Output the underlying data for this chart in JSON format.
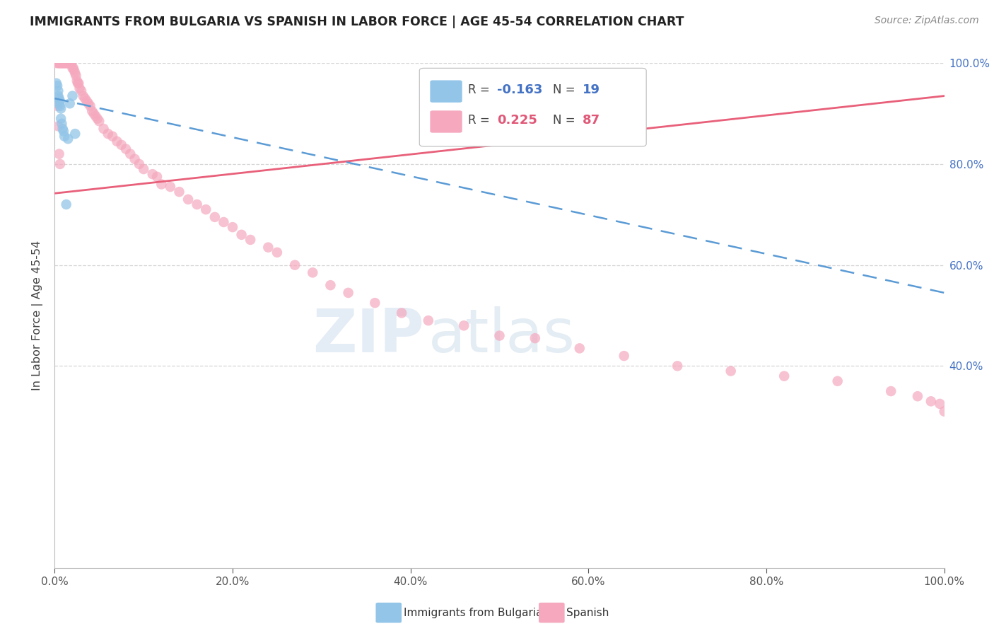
{
  "title": "IMMIGRANTS FROM BULGARIA VS SPANISH IN LABOR FORCE | AGE 45-54 CORRELATION CHART",
  "source": "Source: ZipAtlas.com",
  "ylabel": "In Labor Force | Age 45-54",
  "xlim": [
    0.0,
    1.0
  ],
  "ylim": [
    0.0,
    1.0
  ],
  "xticks": [
    0.0,
    0.2,
    0.4,
    0.6,
    0.8,
    1.0
  ],
  "yticks_right": [
    0.4,
    0.6,
    0.8,
    1.0
  ],
  "xticklabels": [
    "0.0%",
    "20.0%",
    "40.0%",
    "60.0%",
    "80.0%",
    "100.0%"
  ],
  "yticklabels_right": [
    "40.0%",
    "60.0%",
    "80.0%",
    "100.0%"
  ],
  "legend_r_blue": "-0.163",
  "legend_n_blue": "19",
  "legend_r_pink": "0.225",
  "legend_n_pink": "87",
  "blue_color": "#92C5E8",
  "pink_color": "#F5A8BE",
  "trendline_blue_color": "#5B9BD5",
  "trendline_pink_color": "#E8607A",
  "watermark_zip": "ZIP",
  "watermark_atlas": "atlas",
  "blue_trendline_x": [
    0.0,
    1.0
  ],
  "blue_trendline_y": [
    0.93,
    0.545
  ],
  "pink_trendline_x": [
    0.0,
    1.0
  ],
  "pink_trendline_y": [
    0.742,
    0.935
  ],
  "bulgaria_x": [
    0.002,
    0.003,
    0.004,
    0.004,
    0.005,
    0.005,
    0.006,
    0.006,
    0.007,
    0.007,
    0.008,
    0.009,
    0.01,
    0.011,
    0.013,
    0.015,
    0.017,
    0.02,
    0.023
  ],
  "bulgaria_y": [
    0.96,
    0.955,
    0.945,
    0.935,
    0.93,
    0.92,
    0.925,
    0.915,
    0.91,
    0.89,
    0.88,
    0.87,
    0.865,
    0.855,
    0.72,
    0.85,
    0.92,
    0.935,
    0.86
  ],
  "spanish_x": [
    0.002,
    0.004,
    0.005,
    0.006,
    0.007,
    0.008,
    0.009,
    0.01,
    0.011,
    0.012,
    0.013,
    0.014,
    0.015,
    0.016,
    0.017,
    0.018,
    0.019,
    0.02,
    0.021,
    0.022,
    0.023,
    0.024,
    0.025,
    0.026,
    0.027,
    0.028,
    0.03,
    0.032,
    0.034,
    0.036,
    0.038,
    0.04,
    0.042,
    0.044,
    0.046,
    0.048,
    0.05,
    0.055,
    0.06,
    0.065,
    0.07,
    0.075,
    0.08,
    0.085,
    0.09,
    0.095,
    0.1,
    0.11,
    0.115,
    0.12,
    0.13,
    0.14,
    0.15,
    0.16,
    0.17,
    0.18,
    0.19,
    0.2,
    0.21,
    0.22,
    0.24,
    0.25,
    0.27,
    0.29,
    0.31,
    0.33,
    0.36,
    0.39,
    0.42,
    0.46,
    0.5,
    0.54,
    0.59,
    0.64,
    0.7,
    0.76,
    0.82,
    0.88,
    0.94,
    0.97,
    0.985,
    0.995,
    1.0,
    0.003,
    0.004,
    0.005,
    0.006
  ],
  "spanish_y": [
    1.0,
    1.0,
    1.0,
    1.0,
    1.0,
    1.0,
    1.0,
    1.0,
    1.0,
    1.0,
    1.0,
    1.0,
    1.0,
    1.0,
    1.0,
    1.0,
    1.0,
    0.99,
    0.99,
    0.985,
    0.98,
    0.975,
    0.965,
    0.96,
    0.96,
    0.95,
    0.945,
    0.935,
    0.93,
    0.925,
    0.92,
    0.915,
    0.905,
    0.9,
    0.895,
    0.89,
    0.885,
    0.87,
    0.86,
    0.855,
    0.845,
    0.838,
    0.83,
    0.82,
    0.81,
    0.8,
    0.79,
    0.78,
    0.775,
    0.76,
    0.755,
    0.745,
    0.73,
    0.72,
    0.71,
    0.695,
    0.685,
    0.675,
    0.66,
    0.65,
    0.635,
    0.625,
    0.6,
    0.585,
    0.56,
    0.545,
    0.525,
    0.505,
    0.49,
    0.48,
    0.46,
    0.455,
    0.435,
    0.42,
    0.4,
    0.39,
    0.38,
    0.37,
    0.35,
    0.34,
    0.33,
    0.325,
    0.31,
    0.915,
    0.875,
    0.82,
    0.8
  ]
}
